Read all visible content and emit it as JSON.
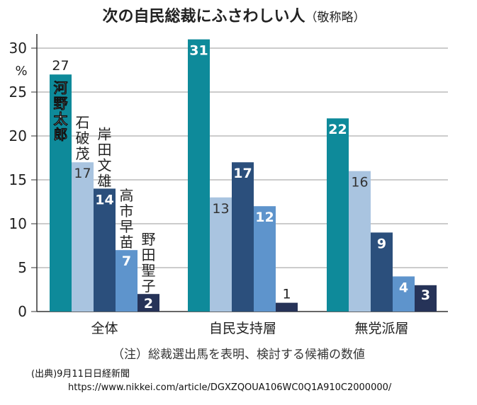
{
  "chart_data": {
    "type": "bar",
    "title": "次の自民総裁にふさわしい人",
    "title_suffix": "（敬称略）",
    "ylabel": "%",
    "ylim": [
      0,
      30
    ],
    "yticks": [
      0,
      5,
      10,
      15,
      20,
      25,
      30
    ],
    "grid": true,
    "categories": [
      "全体",
      "自民支持層",
      "無党派層"
    ],
    "series": [
      {
        "name": "河野太郎",
        "values": [
          27,
          31,
          22
        ],
        "color": "#0e8a9a"
      },
      {
        "name": "石破茂",
        "values": [
          17,
          13,
          16
        ],
        "color": "#a9c4e0"
      },
      {
        "name": "岸田文雄",
        "values": [
          14,
          17,
          9
        ],
        "color": "#2b4f7c"
      },
      {
        "name": "高市早苗",
        "values": [
          7,
          12,
          4
        ],
        "color": "#5e94cc"
      },
      {
        "name": "野田聖子",
        "values": [
          2,
          1,
          3
        ],
        "color": "#263358"
      }
    ],
    "note": "（注）総裁選出馬を表明、検討する候補の数値"
  },
  "source": "(出典)9月11日日経新聞",
  "url": "https://www.nikkei.com/article/DGXZQOUA106WC0Q1A910C2000000/"
}
